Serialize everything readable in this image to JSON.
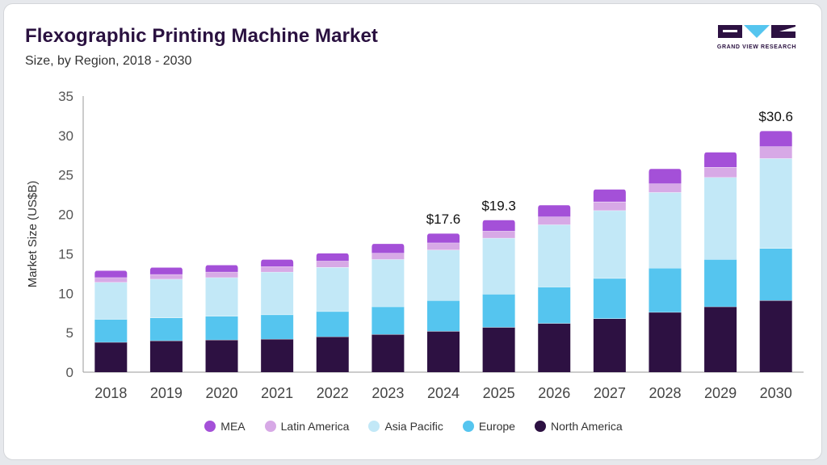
{
  "title": "Flexographic Printing Machine Market",
  "subtitle": "Size, by Region, 2018 - 2030",
  "logo": {
    "text": "GRAND VIEW RESEARCH"
  },
  "chart_data": {
    "type": "bar",
    "stacked": true,
    "categories": [
      "2018",
      "2019",
      "2020",
      "2021",
      "2022",
      "2023",
      "2024",
      "2025",
      "2026",
      "2027",
      "2028",
      "2029",
      "2030"
    ],
    "ylabel": "Market Size (US$B)",
    "xlabel": "",
    "ylim": [
      0,
      35
    ],
    "yticks": [
      0,
      5,
      10,
      15,
      20,
      25,
      30,
      35
    ],
    "grid": false,
    "legend_position": "bottom",
    "series": [
      {
        "name": "North America",
        "color": "#2d1142",
        "values": [
          3.8,
          4.0,
          4.1,
          4.2,
          4.5,
          4.8,
          5.2,
          5.7,
          6.2,
          6.8,
          7.6,
          8.3,
          9.1
        ]
      },
      {
        "name": "Europe",
        "color": "#55c5ef",
        "values": [
          2.9,
          2.9,
          3.0,
          3.1,
          3.2,
          3.5,
          3.9,
          4.2,
          4.6,
          5.1,
          5.6,
          6.0,
          6.6
        ]
      },
      {
        "name": "Asia Pacific",
        "color": "#c2e8f7",
        "values": [
          4.7,
          4.9,
          4.9,
          5.4,
          5.6,
          6.0,
          6.4,
          7.1,
          7.9,
          8.6,
          9.6,
          10.4,
          11.4
        ]
      },
      {
        "name": "Latin America",
        "color": "#d7a9e6",
        "values": [
          0.6,
          0.6,
          0.7,
          0.7,
          0.8,
          0.8,
          0.9,
          0.9,
          1.0,
          1.1,
          1.1,
          1.3,
          1.5
        ]
      },
      {
        "name": "MEA",
        "color": "#a450d8",
        "values": [
          0.9,
          0.9,
          0.9,
          0.9,
          1.0,
          1.2,
          1.2,
          1.4,
          1.5,
          1.6,
          1.9,
          1.9,
          2.0
        ]
      }
    ],
    "annotations": [
      {
        "category": "2024",
        "text": "$17.6",
        "value": 17.6
      },
      {
        "category": "2025",
        "text": "$19.3",
        "value": 19.3
      },
      {
        "category": "2030",
        "text": "$30.6",
        "value": 30.6
      }
    ],
    "legend_order": [
      "MEA",
      "Latin America",
      "Asia Pacific",
      "Europe",
      "North America"
    ]
  }
}
